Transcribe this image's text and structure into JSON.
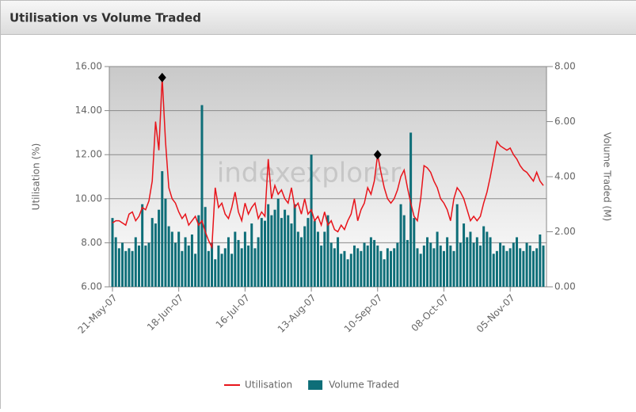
{
  "chart_data": {
    "type": "bar-line",
    "title": "Utilisation vs Volume Traded",
    "watermark": "indexexplorer",
    "ylabel": "Utilisation (%)",
    "y2label": "Volume Traded (M)",
    "categories": [
      "21-May-07",
      null,
      null,
      null,
      null,
      null,
      null,
      null,
      null,
      null,
      null,
      null,
      null,
      null,
      null,
      null,
      null,
      null,
      null,
      null,
      "18-Jun-07",
      null,
      null,
      null,
      null,
      null,
      null,
      null,
      null,
      null,
      null,
      null,
      null,
      null,
      null,
      null,
      null,
      null,
      null,
      null,
      "16-Jul-07",
      null,
      null,
      null,
      null,
      null,
      null,
      null,
      null,
      null,
      null,
      null,
      null,
      null,
      null,
      null,
      null,
      null,
      null,
      null,
      "13-Aug-07",
      null,
      null,
      null,
      null,
      null,
      null,
      null,
      null,
      null,
      null,
      null,
      null,
      null,
      null,
      null,
      null,
      null,
      null,
      null,
      "10-Sep-07",
      null,
      null,
      null,
      null,
      null,
      null,
      null,
      null,
      null,
      null,
      null,
      null,
      null,
      null,
      null,
      null,
      null,
      null,
      null,
      "08-Oct-07",
      null,
      null,
      null,
      null,
      null,
      null,
      null,
      null,
      null,
      null,
      null,
      null,
      null,
      null,
      null,
      null,
      null,
      null,
      null,
      "05-Nov-07",
      null,
      null,
      null,
      null,
      null,
      null,
      null,
      null,
      null,
      null
    ],
    "series": [
      {
        "name": "Utilisation",
        "type": "line",
        "color": "#e8141b",
        "markers": [
          15,
          80
        ],
        "values": [
          8.9,
          9.0,
          9.0,
          8.9,
          8.8,
          9.3,
          9.4,
          9.0,
          9.2,
          9.6,
          9.5,
          9.9,
          10.8,
          13.5,
          12.2,
          15.5,
          12.6,
          10.5,
          10.0,
          9.8,
          9.4,
          9.1,
          9.3,
          8.8,
          9.0,
          9.2,
          8.8,
          9.0,
          8.5,
          8.1,
          7.8,
          10.5,
          9.6,
          9.8,
          9.3,
          9.1,
          9.6,
          10.3,
          9.4,
          9.0,
          9.8,
          9.3,
          9.6,
          9.8,
          9.1,
          9.4,
          9.2,
          11.8,
          10.0,
          10.6,
          10.2,
          10.4,
          10.0,
          9.8,
          10.5,
          9.6,
          9.8,
          9.3,
          10.0,
          9.3,
          9.5,
          9.0,
          9.2,
          8.8,
          9.4,
          8.8,
          9.0,
          8.6,
          8.5,
          8.8,
          8.6,
          9.0,
          9.3,
          10.0,
          9.0,
          9.5,
          9.8,
          10.5,
          10.2,
          10.8,
          12.0,
          11.2,
          10.5,
          10.0,
          9.8,
          10.0,
          10.4,
          11.0,
          11.3,
          10.5,
          9.8,
          9.2,
          9.0,
          10.0,
          11.5,
          11.4,
          11.2,
          10.8,
          10.5,
          10.0,
          9.8,
          9.5,
          9.0,
          10.0,
          10.5,
          10.3,
          10.0,
          9.5,
          9.0,
          9.2,
          9.0,
          9.2,
          9.8,
          10.3,
          11.0,
          11.8,
          12.6,
          12.4,
          12.3,
          12.2,
          12.3,
          12.0,
          11.8,
          11.5,
          11.3,
          11.2,
          11.0,
          10.8,
          11.2,
          10.8,
          10.6
        ]
      },
      {
        "name": "Volume Traded",
        "type": "bar",
        "axis": "y2",
        "color": "#0e6e78",
        "values": [
          2.5,
          1.8,
          1.4,
          1.6,
          1.3,
          1.4,
          1.3,
          1.8,
          1.5,
          3.0,
          1.5,
          1.6,
          2.5,
          2.3,
          2.8,
          4.2,
          3.2,
          2.2,
          2.0,
          1.6,
          2.0,
          1.3,
          1.8,
          1.5,
          1.9,
          1.2,
          2.6,
          6.6,
          2.9,
          1.3,
          1.6,
          1.0,
          1.5,
          1.2,
          1.4,
          1.8,
          1.2,
          2.0,
          1.7,
          1.4,
          2.0,
          1.5,
          2.3,
          1.4,
          1.8,
          2.5,
          2.4,
          3.0,
          2.6,
          2.8,
          3.2,
          2.5,
          2.8,
          2.6,
          2.3,
          3.0,
          2.0,
          1.8,
          2.2,
          2.5,
          4.8,
          2.4,
          2.0,
          1.5,
          2.0,
          2.6,
          1.6,
          1.4,
          1.8,
          1.2,
          1.3,
          1.0,
          1.2,
          1.5,
          1.4,
          1.3,
          1.6,
          1.5,
          1.8,
          1.7,
          1.5,
          1.3,
          1.0,
          1.4,
          1.3,
          1.4,
          1.6,
          3.0,
          2.6,
          1.7,
          5.6,
          2.5,
          1.4,
          1.2,
          1.5,
          1.8,
          1.6,
          1.4,
          2.0,
          1.5,
          1.3,
          1.8,
          1.5,
          1.3,
          3.0,
          1.6,
          2.3,
          1.8,
          2.0,
          1.6,
          1.8,
          1.5,
          2.2,
          2.0,
          1.8,
          1.2,
          1.3,
          1.6,
          1.5,
          1.3,
          1.4,
          1.6,
          1.8,
          1.4,
          1.3,
          1.6,
          1.5,
          1.3,
          1.4,
          1.9,
          1.5
        ]
      }
    ],
    "ylim": [
      6,
      16
    ],
    "yticks": [
      {
        "value": 6,
        "label": "6.00"
      },
      {
        "value": 8,
        "label": "8.00"
      },
      {
        "value": 10,
        "label": "10.00"
      },
      {
        "value": 12,
        "label": "12.00"
      },
      {
        "value": 14,
        "label": "14.00"
      },
      {
        "value": 16,
        "label": "16.00"
      }
    ],
    "y2lim": [
      0,
      8
    ],
    "y2ticks": [
      {
        "value": 0,
        "label": "0.00"
      },
      {
        "value": 2,
        "label": "2.00"
      },
      {
        "value": 4,
        "label": "4.00"
      },
      {
        "value": 6,
        "label": "6.00"
      },
      {
        "value": 8,
        "label": "8.00"
      }
    ],
    "grid": true,
    "legend": "bottom"
  }
}
